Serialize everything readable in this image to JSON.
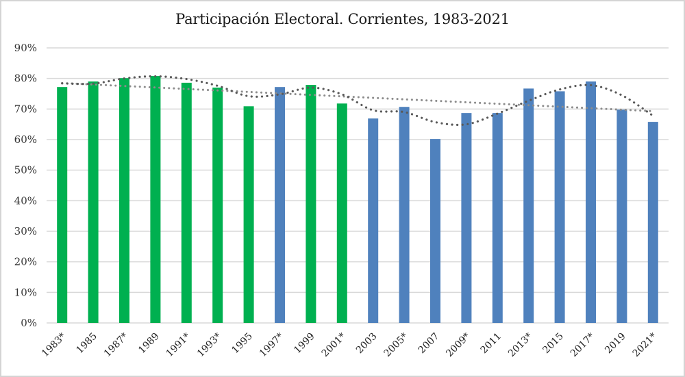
{
  "chart_data": {
    "type": "bar",
    "title": "Participación Electoral. Corrientes, 1983-2021",
    "xlabel": "",
    "ylabel": "",
    "ylim": [
      0,
      0.9
    ],
    "yticks": [
      0,
      0.1,
      0.2,
      0.3,
      0.4,
      0.5,
      0.6,
      0.7,
      0.8,
      0.9
    ],
    "ytick_labels": [
      "0%",
      "10%",
      "20%",
      "30%",
      "40%",
      "50%",
      "60%",
      "70%",
      "80%",
      "90%"
    ],
    "grid": true,
    "legend": "none",
    "categories": [
      "1983*",
      "1985",
      "1987*",
      "1989",
      "1991*",
      "1993*",
      "1995",
      "1997*",
      "1999",
      "2001*",
      "2003",
      "2005*",
      "2007",
      "2009*",
      "2011",
      "2013*",
      "2015",
      "2017*",
      "2019",
      "2021*"
    ],
    "values": [
      0.772,
      0.79,
      0.801,
      0.808,
      0.786,
      0.77,
      0.709,
      0.772,
      0.779,
      0.718,
      0.669,
      0.707,
      0.602,
      0.687,
      0.687,
      0.767,
      0.758,
      0.79,
      0.698,
      0.658
    ],
    "bar_colors": [
      "#00b050",
      "#00b050",
      "#00b050",
      "#00b050",
      "#00b050",
      "#00b050",
      "#00b050",
      "#4f81bd",
      "#00b050",
      "#00b050",
      "#4f81bd",
      "#4f81bd",
      "#4f81bd",
      "#4f81bd",
      "#4f81bd",
      "#4f81bd",
      "#4f81bd",
      "#4f81bd",
      "#4f81bd",
      "#4f81bd"
    ],
    "trendlines": [
      {
        "name": "linear-trend",
        "kind": "linear",
        "color": "#8c8c8c",
        "start": 0.785,
        "end": 0.693
      },
      {
        "name": "polynomial-trend",
        "kind": "polynomial",
        "color": "#595959",
        "values": [
          0.784,
          0.783,
          0.8,
          0.807,
          0.798,
          0.776,
          0.742,
          0.748,
          0.77,
          0.748,
          0.696,
          0.69,
          0.657,
          0.65,
          0.685,
          0.727,
          0.764,
          0.778,
          0.745,
          0.678
        ]
      }
    ]
  }
}
